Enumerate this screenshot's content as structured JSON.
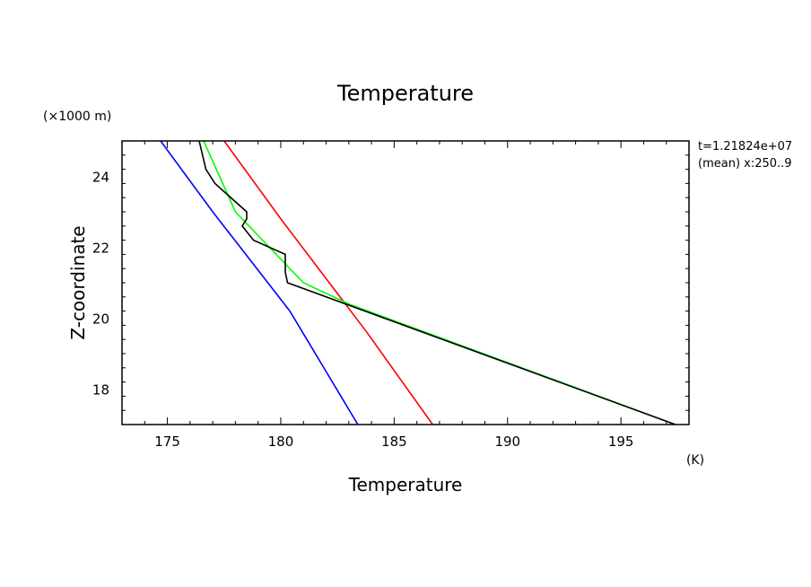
{
  "chart_data": {
    "type": "line",
    "title": "Temperature",
    "xlabel": "Temperature",
    "ylabel": "Z-coordinate",
    "x_unit": "(K)",
    "y_unit": "(×1000 m)",
    "xlim": [
      173,
      198
    ],
    "ylim": [
      17,
      25
    ],
    "x_ticks": [
      175,
      180,
      185,
      190,
      195
    ],
    "y_ticks": [
      18,
      20,
      22,
      24
    ],
    "annotations": [
      "t=1.21824e+07",
      "(mean) x:250..9"
    ],
    "series": [
      {
        "color": "#0000ff",
        "x": [
          174.7,
          177.0,
          180.4,
          183.4
        ],
        "y": [
          25.0,
          23.0,
          20.2,
          17.0
        ]
      },
      {
        "color": "#ff0000",
        "x": [
          177.5,
          180.0,
          183.8,
          186.7
        ],
        "y": [
          25.0,
          22.8,
          19.6,
          17.0
        ]
      },
      {
        "color": "#00ff00",
        "x": [
          176.6,
          178.0,
          181.0,
          183.0,
          197.4
        ],
        "y": [
          25.0,
          23.0,
          21.0,
          20.4,
          17.0
        ]
      },
      {
        "color": "#000000",
        "x": [
          176.4,
          176.7,
          177.1,
          178.5,
          178.5,
          178.3,
          178.8,
          180.2,
          180.2,
          180.3,
          197.4
        ],
        "y": [
          25.0,
          24.2,
          23.8,
          23.0,
          22.8,
          22.6,
          22.2,
          21.8,
          21.3,
          21.0,
          17.0
        ]
      }
    ]
  }
}
